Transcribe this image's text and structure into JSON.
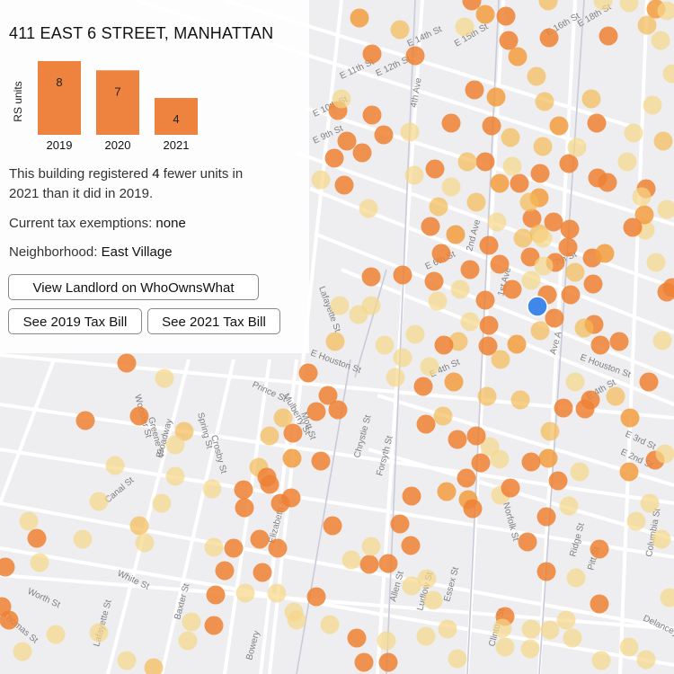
{
  "panel": {
    "title": "411 EAST 6 STREET, MANHATTAN",
    "chart_ylabel": "RS units",
    "summary_pre": "This building registered",
    "summary_count": "4",
    "summary_post_1": "fewer units in",
    "summary_post_2": "2021 than it did in 2019.",
    "tax_label": "Current tax exemptions:",
    "tax_value": "none",
    "hood_label": "Neighborhood:",
    "hood_value": "East Village",
    "btn_landlord": "View Landlord on WhoOwnsWhat",
    "btn_tax2019": "See 2019 Tax Bill",
    "btn_tax2021": "See 2021 Tax Bill"
  },
  "chart_data": {
    "type": "bar",
    "categories": [
      "2019",
      "2020",
      "2021"
    ],
    "values": [
      8,
      7,
      4
    ],
    "ylabel": "RS units",
    "color": "#ee8340"
  },
  "map": {
    "selected_color": "#3f87e8",
    "dot_colors": [
      "#ee8033",
      "#f29c3e",
      "#f5bb55",
      "#f7d787"
    ],
    "labels": [
      "E 14th St",
      "E 15th St",
      "E 16th St",
      "E 18th St",
      "E 11th St",
      "E 12th St",
      "4th Ave",
      "E 10th St",
      "E 9th St",
      "Lafayette St",
      "E 6th St",
      "2nd Ave",
      "1st Ave",
      "E 7th St",
      "E 4th St",
      "E Houston St",
      "Prince St",
      "Mulberry St",
      "Mott St",
      "Spring St",
      "Crosby St",
      "Broadway",
      "Wooster St",
      "Greene St",
      "Canal St",
      "White St",
      "Worth St",
      "Thomas St",
      "Lafayette St",
      "Baxter St",
      "Bowery",
      "Elizabeth St",
      "Chrystie St",
      "Forsyth St",
      "Norfolk St",
      "Allen St",
      "Ludlow St",
      "Essex St",
      "Clinton St",
      "Ridge St",
      "Pitt St",
      "Columbia St",
      "Delancey St",
      "E 3rd St",
      "E 2nd St",
      "E Houston St",
      "Ave A",
      "E 4th St"
    ]
  }
}
